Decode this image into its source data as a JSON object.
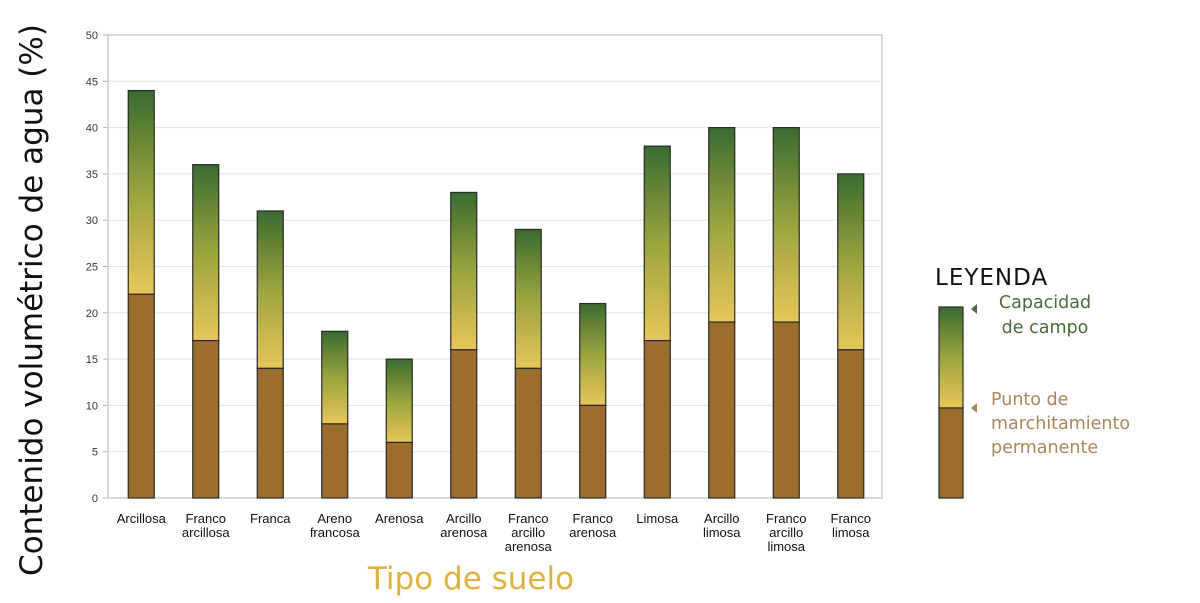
{
  "chart_data": {
    "type": "bar",
    "xlabel": "Tipo de suelo",
    "ylabel": "Contenido volumétrico de agua (%)",
    "ylim": [
      0,
      50
    ],
    "yticks": [
      0,
      5,
      10,
      15,
      20,
      25,
      30,
      35,
      40,
      45,
      50
    ],
    "grid": true,
    "categories": [
      [
        "Arcillosa"
      ],
      [
        "Franco",
        "arcillosa"
      ],
      [
        "Franca"
      ],
      [
        "Areno",
        "francosa"
      ],
      [
        "Arenosa"
      ],
      [
        "Arcillo",
        "arenosa"
      ],
      [
        "Franco",
        "arcillo",
        "arenosa"
      ],
      [
        "Franco",
        "arenosa"
      ],
      [
        "Limosa"
      ],
      [
        "Arcillo",
        "limosa"
      ],
      [
        "Franco",
        "arcillo",
        "limosa"
      ],
      [
        "Franco",
        "limosa"
      ]
    ],
    "series": [
      {
        "name": "Punto de marchitamiento permanente",
        "values": [
          22,
          17,
          14,
          8,
          6,
          16,
          14,
          10,
          17,
          19,
          19,
          16
        ]
      },
      {
        "name": "Capacidad de campo",
        "values": [
          44,
          36,
          31,
          18,
          15,
          33,
          29,
          21,
          38,
          40,
          40,
          35
        ]
      }
    ],
    "legend": {
      "title": "LEYENDA",
      "position": "right",
      "field_capacity_lines": [
        "Capacidad",
        "de campo"
      ],
      "wilting_point_lines": [
        "Punto de",
        "marchitamiento",
        "permanente"
      ]
    }
  },
  "colors": {
    "wilting_bar": "#9c6e2e",
    "gradient_low": "#e8c65a",
    "gradient_mid": "#9aa43e",
    "gradient_high": "#3a6b30",
    "xlabel_color": "#e0b23c",
    "legend_fc_color": "#4a6b3a",
    "legend_pmp_color": "#a8885a",
    "grid": "#e3e3e3",
    "axis": "#b5b5b5"
  }
}
